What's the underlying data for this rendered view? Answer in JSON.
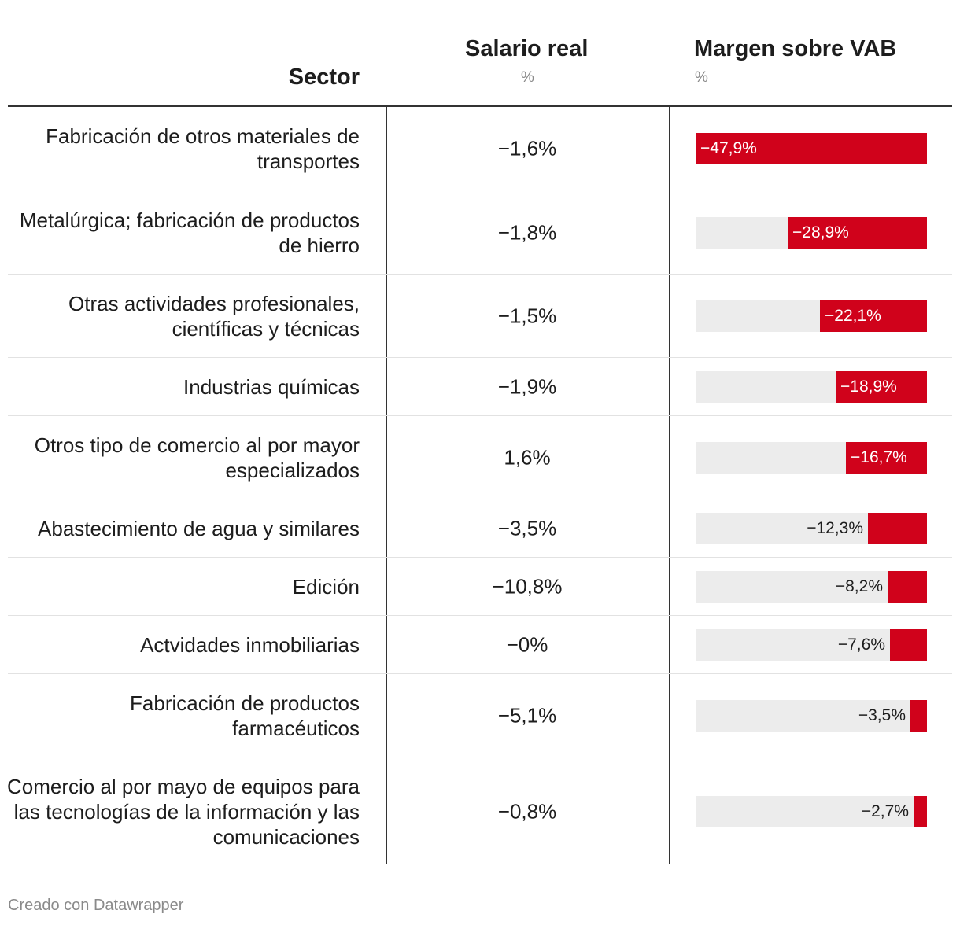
{
  "chart_data": {
    "type": "table",
    "columns": {
      "sector": "Sector",
      "salario": "Salario real",
      "salario_unit": "%",
      "margen": "Margen sobre VAB",
      "margen_unit": "%"
    },
    "bar_max": 47.9,
    "colors": {
      "bar": "#d0021b",
      "track": "#ececec"
    },
    "rows": [
      {
        "sector": "Fabricación de otros materiales de transportes",
        "salario": "−1,6%",
        "margen": -47.9,
        "margen_label": "−47,9%"
      },
      {
        "sector": "Metalúrgica; fabricación de productos de hierro",
        "salario": "−1,8%",
        "margen": -28.9,
        "margen_label": "−28,9%"
      },
      {
        "sector": "Otras actividades profesionales, científicas y técnicas",
        "salario": "−1,5%",
        "margen": -22.1,
        "margen_label": "−22,1%"
      },
      {
        "sector": "Industrias químicas",
        "salario": "−1,9%",
        "margen": -18.9,
        "margen_label": "−18,9%"
      },
      {
        "sector": "Otros tipo de comercio al por mayor especializados",
        "salario": "1,6%",
        "margen": -16.7,
        "margen_label": "−16,7%"
      },
      {
        "sector": "Abastecimiento de agua y similares",
        "salario": "−3,5%",
        "margen": -12.3,
        "margen_label": "−12,3%"
      },
      {
        "sector": "Edición",
        "salario": "−10,8%",
        "margen": -8.2,
        "margen_label": "−8,2%"
      },
      {
        "sector": "Actvidades inmobiliarias",
        "salario": "−0%",
        "margen": -7.6,
        "margen_label": "−7,6%"
      },
      {
        "sector": "Fabricación de productos farmacéuticos",
        "salario": "−5,1%",
        "margen": -3.5,
        "margen_label": "−3,5%"
      },
      {
        "sector": "Comercio al por mayo de equipos para las tecnologías de la información y las comunicaciones",
        "salario": "−0,8%",
        "margen": -2.7,
        "margen_label": "−2,7%"
      }
    ]
  },
  "footer": "Creado con Datawrapper"
}
